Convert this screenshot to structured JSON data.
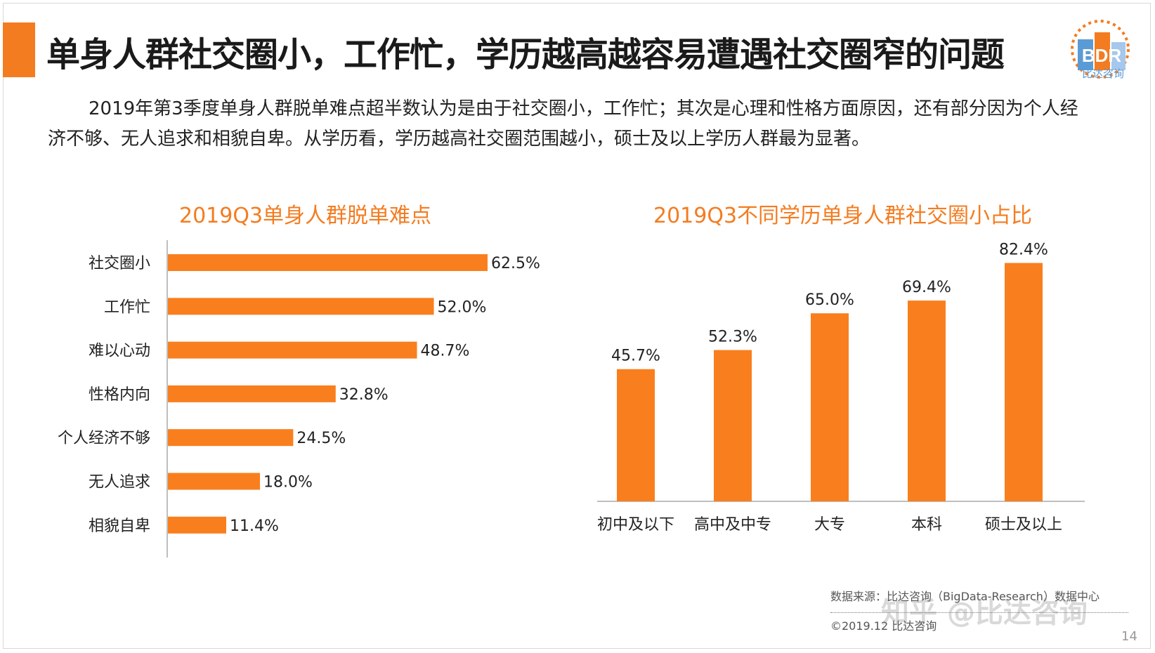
{
  "colors": {
    "accent": "#F47C20",
    "bar": "#F97F1E",
    "title_orange": "#F47C20",
    "axis": "#bfbfbf"
  },
  "slide": {
    "title": "单身人群社交圈小，工作忙，学历越高越容易遭遇社交圈窄的问题",
    "summary": "2019年第3季度单身人群脱单难点超半数认为是由于社交圈小，工作忙；其次是心理和性格方面原因，还有部分因为个人经济不够、无人追求和相貌自卑。从学历看，学历越高社交圈范围越小，硕士及以上学历人群最为显著。",
    "logo_text": "BDR",
    "logo_sub": "比达咨询",
    "source": "数据来源：比达咨询（BigData-Research）数据中心",
    "copyright": "©2019.12 比达咨询",
    "watermark": "知乎 @比达咨询",
    "page_number": "14"
  },
  "chart_data": [
    {
      "type": "bar",
      "orientation": "horizontal",
      "title": "2019Q3单身人群脱单难点",
      "categories": [
        "社交圈小",
        "工作忙",
        "难以心动",
        "性格内向",
        "个人经济不够",
        "无人追求",
        "相貌自卑"
      ],
      "values": [
        62.5,
        52.0,
        48.7,
        32.8,
        24.5,
        18.0,
        11.4
      ],
      "labels": [
        "62.5%",
        "52.0%",
        "48.7%",
        "32.8%",
        "24.5%",
        "18.0%",
        "11.4%"
      ],
      "unit": "%",
      "xlim": [
        0,
        100
      ],
      "grid": false,
      "legend": "none"
    },
    {
      "type": "bar",
      "orientation": "vertical",
      "title": "2019Q3不同学历单身人群社交圈小占比",
      "categories": [
        "初中及以下",
        "高中及中专",
        "大专",
        "本科",
        "硕士及以上"
      ],
      "values": [
        45.7,
        52.3,
        65.0,
        69.4,
        82.4
      ],
      "labels": [
        "45.7%",
        "52.3%",
        "65.0%",
        "69.4%",
        "82.4%"
      ],
      "unit": "%",
      "ylim": [
        0,
        100
      ],
      "grid": false,
      "legend": "none"
    }
  ]
}
